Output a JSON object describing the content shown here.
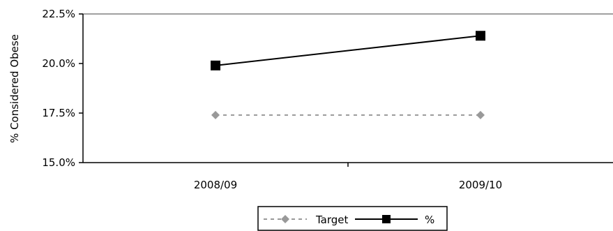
{
  "chart_data": {
    "type": "line",
    "categories": [
      "2008/09",
      "2009/10"
    ],
    "ylabel": "% Considered Obese",
    "xlabel": "",
    "ylim": [
      0.15,
      0.225
    ],
    "yticks": [
      0.15,
      0.175,
      0.2,
      0.225
    ],
    "ytick_labels": [
      "15.0%",
      "17.5%",
      "20.0%",
      "22.5%"
    ],
    "grid": false,
    "legend_position": "bottom",
    "series": [
      {
        "name": "Target",
        "values": [
          0.174,
          0.174
        ],
        "color": "#999999",
        "line": "dashed",
        "marker": "diamond"
      },
      {
        "name": "%",
        "values": [
          0.199,
          0.214
        ],
        "color": "#000000",
        "line": "solid",
        "marker": "square"
      }
    ]
  }
}
